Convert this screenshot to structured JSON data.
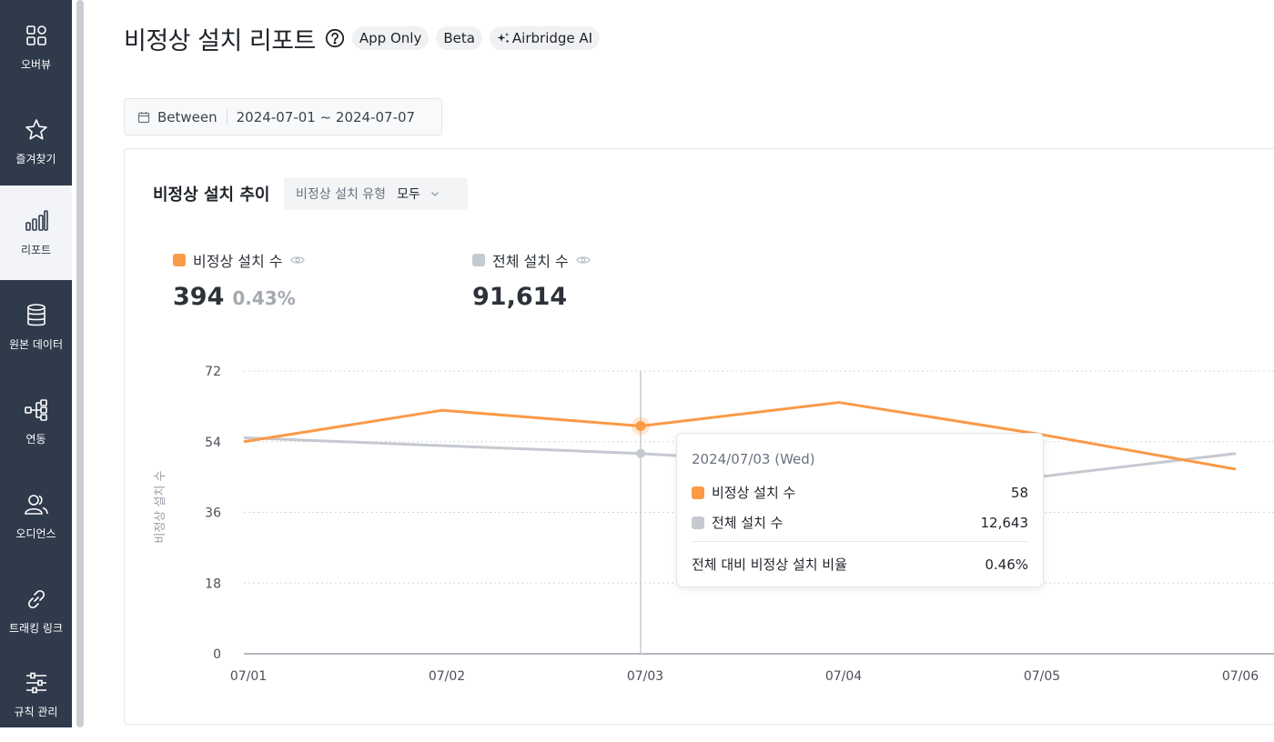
{
  "sidebar": {
    "items": [
      {
        "label": "오버뷰",
        "icon": "overview-grid-icon"
      },
      {
        "label": "즐겨찾기",
        "icon": "star-icon"
      },
      {
        "label": "리포트",
        "icon": "bar-chart-icon",
        "active": true
      },
      {
        "label": "원본 데이터",
        "icon": "database-icon"
      },
      {
        "label": "연동",
        "icon": "integration-tree-icon"
      },
      {
        "label": "오디언스",
        "icon": "users-icon"
      },
      {
        "label": "트래킹 링크",
        "icon": "link-icon"
      },
      {
        "label": "규칙 관리",
        "icon": "sliders-icon"
      }
    ]
  },
  "header": {
    "title": "비정상 설치 리포트",
    "badges": [
      "App Only",
      "Beta",
      "Airbridge AI"
    ]
  },
  "filter": {
    "operator": "Between",
    "range": "2024-07-01 ~ 2024-07-07"
  },
  "card": {
    "title": "비정상 설치 추이",
    "type_select_label": "비정상 설치 유형",
    "type_select_value": "모두"
  },
  "metrics": [
    {
      "label": "비정상 설치 수",
      "value": "394",
      "pct": "0.43%",
      "color": "#fa9a47"
    },
    {
      "label": "전체 설치 수",
      "value": "91,614",
      "pct": "",
      "color": "#c5c9d0"
    }
  ],
  "chart_data": {
    "type": "line",
    "categories": [
      "07/01",
      "07/02",
      "07/03",
      "07/04",
      "07/05",
      "07/06"
    ],
    "ylabel": "비정상 설치 수",
    "yticks": [
      "72",
      "54",
      "36",
      "18",
      "0"
    ],
    "ylim": [
      0,
      72
    ],
    "grid": true,
    "series": [
      {
        "name": "비정상 설치 수",
        "color": "#fa9a47",
        "values": [
          54,
          62,
          58,
          64,
          56,
          47
        ]
      },
      {
        "name": "전체 설치 수",
        "color": "#c5c9d0",
        "values": [
          55,
          53,
          51,
          48,
          45,
          51
        ]
      }
    ],
    "highlight_index": 2
  },
  "tooltip": {
    "date": "2024/07/03 (Wed)",
    "rows": [
      {
        "label": "비정상 설치 수",
        "value": "58",
        "color": "#fa9a47"
      },
      {
        "label": "전체 설치 수",
        "value": "12,643",
        "color": "#c5c9d0"
      }
    ],
    "ratio_label": "전체 대비 비정상 설치 비율",
    "ratio_value": "0.46%"
  }
}
